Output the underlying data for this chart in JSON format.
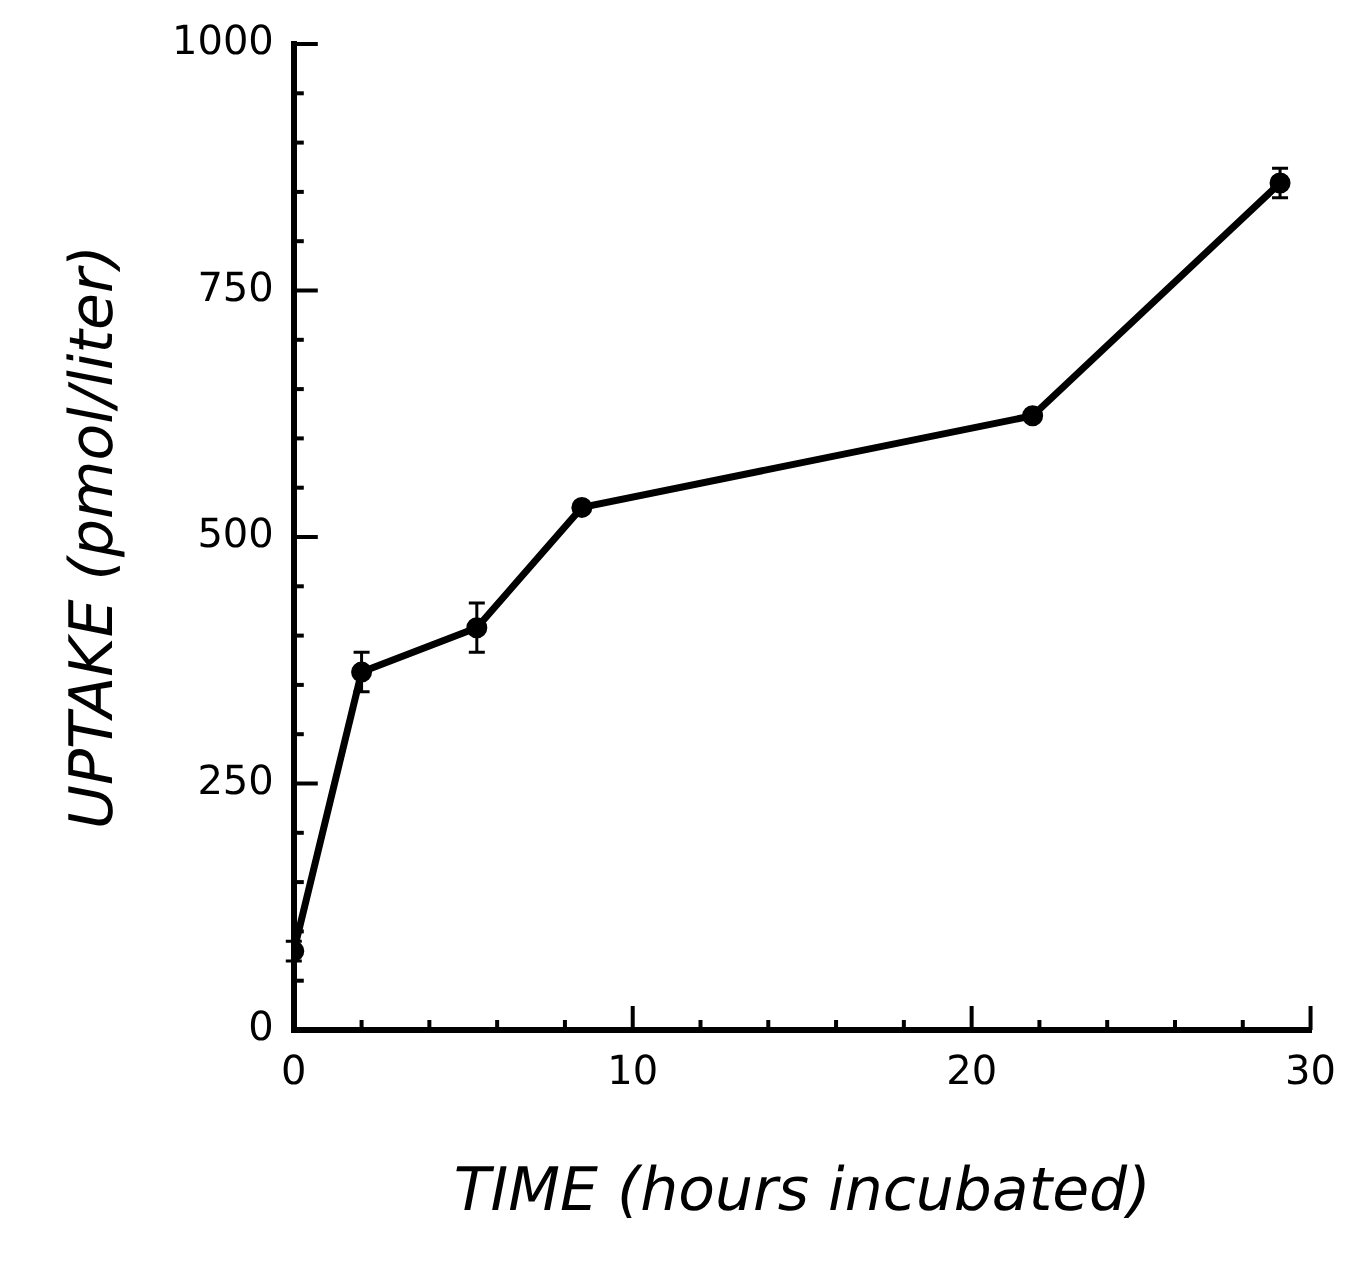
{
  "chart_data": {
    "type": "line",
    "xlabel": "TIME (hours incubated)",
    "ylabel": "UPTAKE (pmol/liter)",
    "x": [
      0,
      2,
      5.4,
      8.5,
      21.8,
      29.1
    ],
    "series": [
      {
        "color": "#000000",
        "values": [
          80,
          363,
          408,
          530,
          623,
          859
        ],
        "errors": [
          10,
          20,
          25,
          null,
          null,
          15
        ]
      }
    ],
    "xlim": [
      0,
      30
    ],
    "ylim": [
      0,
      1000
    ],
    "xticks": [
      0,
      {
        "value": 2,
        "label": null
      },
      {
        "value": 4,
        "label": null
      },
      {
        "value": 6,
        "label": null
      },
      {
        "value": 8,
        "label": null
      },
      10,
      {
        "value": 12,
        "label": null
      },
      {
        "value": 14,
        "label": null
      },
      {
        "value": 16,
        "label": null
      },
      {
        "value": 18,
        "label": null
      },
      20,
      {
        "value": 22,
        "label": null
      },
      {
        "value": 24,
        "label": null
      },
      {
        "value": 26,
        "label": null
      },
      {
        "value": 28,
        "label": null
      },
      30
    ],
    "yticks": [
      0,
      {
        "value": 50,
        "label": null
      },
      {
        "value": 100,
        "label": null
      },
      {
        "value": 150,
        "label": null
      },
      {
        "value": 200,
        "label": null
      },
      250,
      {
        "value": 300,
        "label": null
      },
      {
        "value": 350,
        "label": null
      },
      {
        "value": 400,
        "label": null
      },
      {
        "value": 450,
        "label": null
      },
      500,
      {
        "value": 550,
        "label": null
      },
      {
        "value": 600,
        "label": null
      },
      {
        "value": 650,
        "label": null
      },
      {
        "value": 700,
        "label": null
      },
      750,
      {
        "value": 800,
        "label": null
      },
      {
        "value": 850,
        "label": null
      },
      {
        "value": 900,
        "label": null
      },
      {
        "value": 950,
        "label": null
      },
      1000
    ],
    "marker": "circle",
    "line_style": "solid",
    "legend": false
  }
}
